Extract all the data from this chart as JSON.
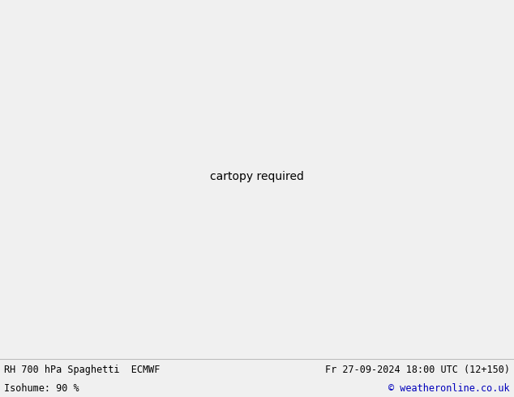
{
  "title_left": "RH 700 hPa Spaghetti  ECMWF",
  "title_right": "Fr 27-09-2024 18:00 UTC (12+150)",
  "subtitle_left": "Isohume: 90 %",
  "subtitle_right": "© weatheronline.co.uk",
  "bg_color": "#f0f0f0",
  "map_land_color": "#f0f0f0",
  "map_water_color": "#f0f0f0",
  "map_border_color": "#808080",
  "green_fill_color": "#ccffb0",
  "bottom_bar_color": "#ffffff",
  "bottom_text_color": "#000000",
  "bottom_right_color": "#0000bb",
  "title_fontsize": 8.5,
  "label_fontsize": 5.5,
  "figsize": [
    6.34,
    4.9
  ],
  "dpi": 100,
  "spaghetti_colors": [
    "#808080",
    "#808080",
    "#808080",
    "#808080",
    "#808080",
    "#ff00ff",
    "#ff00ff",
    "#00ccff",
    "#00ccff",
    "#ff6600",
    "#ff6600",
    "#0066ff",
    "#0066ff",
    "#ff0000",
    "#ff0000",
    "#00aa00",
    "#00aa00",
    "#ffcc00",
    "#ffcc00",
    "#ff99cc",
    "#ff99cc",
    "#009999",
    "#009999",
    "#cc6600",
    "#cc6600",
    "#9900cc",
    "#9900cc",
    "#33cc33",
    "#33cc33",
    "#cc0000",
    "#cc0000",
    "#6633cc",
    "#6633cc",
    "#ff6699",
    "#ff6699",
    "#00ffcc",
    "#00ffcc",
    "#cc9900",
    "#cc9900",
    "#6600cc",
    "#6600cc",
    "#ff3300",
    "#ff3300",
    "#0099cc",
    "#0099cc",
    "#ff9900",
    "#ff9900",
    "#cc00cc",
    "#cc00cc",
    "#33aa33"
  ],
  "num_ensemble": 50,
  "seed": 12345,
  "lon_min": -180,
  "lon_max": 60,
  "lat_min": 10,
  "lat_max": 90
}
